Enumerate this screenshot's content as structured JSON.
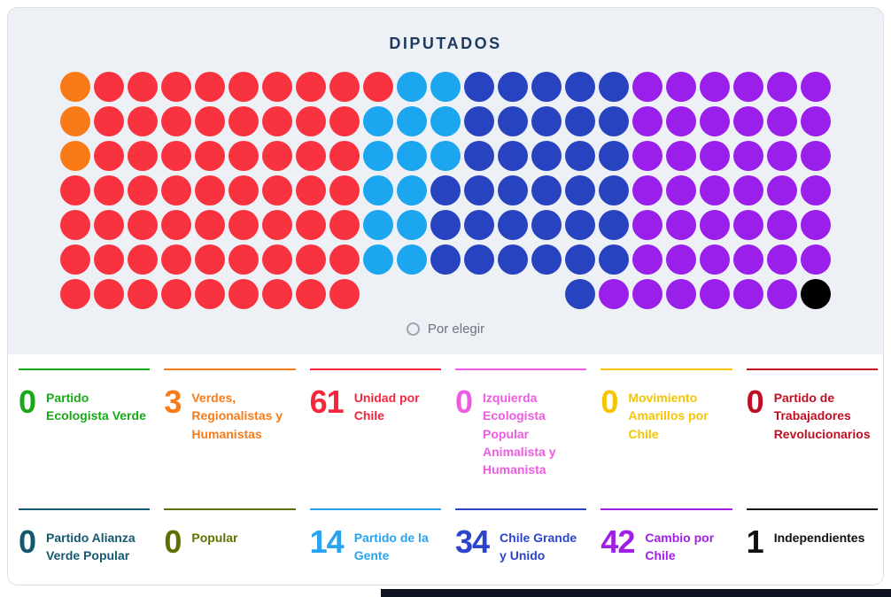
{
  "title": "DIPUTADOS",
  "legend": {
    "label": "Por elegir"
  },
  "seats": {
    "palette": {
      "O": "#f97b17",
      "R": "#f8333f",
      "LB": "#1ba6ef",
      "DB": "#2843bf",
      "P": "#9b1fea",
      "K": "#000000"
    },
    "rows": [
      [
        "O",
        "R",
        "R",
        "R",
        "R",
        "R",
        "R",
        "R",
        "R",
        "R",
        "LB",
        "LB",
        "DB",
        "DB",
        "DB",
        "DB",
        "DB",
        "P",
        "P",
        "P",
        "P",
        "P",
        "P"
      ],
      [
        "O",
        "R",
        "R",
        "R",
        "R",
        "R",
        "R",
        "R",
        "R",
        "LB",
        "LB",
        "LB",
        "DB",
        "DB",
        "DB",
        "DB",
        "DB",
        "P",
        "P",
        "P",
        "P",
        "P",
        "P"
      ],
      [
        "O",
        "R",
        "R",
        "R",
        "R",
        "R",
        "R",
        "R",
        "R",
        "LB",
        "LB",
        "LB",
        "DB",
        "DB",
        "DB",
        "DB",
        "DB",
        "P",
        "P",
        "P",
        "P",
        "P",
        "P"
      ],
      [
        "R",
        "R",
        "R",
        "R",
        "R",
        "R",
        "R",
        "R",
        "R",
        "LB",
        "LB",
        "DB",
        "DB",
        "DB",
        "DB",
        "DB",
        "DB",
        "P",
        "P",
        "P",
        "P",
        "P",
        "P"
      ],
      [
        "R",
        "R",
        "R",
        "R",
        "R",
        "R",
        "R",
        "R",
        "R",
        "LB",
        "LB",
        "DB",
        "DB",
        "DB",
        "DB",
        "DB",
        "DB",
        "P",
        "P",
        "P",
        "P",
        "P",
        "P"
      ],
      [
        "R",
        "R",
        "R",
        "R",
        "R",
        "R",
        "R",
        "R",
        "R",
        "LB",
        "LB",
        "DB",
        "DB",
        "DB",
        "DB",
        "DB",
        "DB",
        "P",
        "P",
        "P",
        "P",
        "P",
        "P"
      ],
      [
        "R",
        "R",
        "R",
        "R",
        "R",
        "R",
        "R",
        "R",
        "R",
        "E",
        "E",
        "E",
        "E",
        "E",
        "E",
        "DB",
        "P",
        "P",
        "P",
        "P",
        "P",
        "P",
        "K"
      ]
    ]
  },
  "parties": [
    {
      "count": "0",
      "name": "Partido Ecologista Verde",
      "color": "#18a818"
    },
    {
      "count": "3",
      "name": "Verdes, Regionalistas y Humanistas",
      "color": "#f97b17"
    },
    {
      "count": "61",
      "name": "Unidad por Chile",
      "color": "#f8253c"
    },
    {
      "count": "0",
      "name": "Izquierda Ecologista Popular Animalista y Humanista",
      "color": "#ee5be1"
    },
    {
      "count": "0",
      "name": "Movimiento Amarillos por Chile",
      "color": "#f6c401"
    },
    {
      "count": "0",
      "name": "Partido de Trabajadores Revolucionarios",
      "color": "#c00f22"
    },
    {
      "count": "0",
      "name": "Partido Alianza Verde Popular",
      "color": "#14586f"
    },
    {
      "count": "0",
      "name": "Popular",
      "color": "#5f7000"
    },
    {
      "count": "14",
      "name": "Partido de la Gente",
      "color": "#29a3ef"
    },
    {
      "count": "34",
      "name": "Chile Grande y Unido",
      "color": "#2b44cb"
    },
    {
      "count": "42",
      "name": "Cambio por Chile",
      "color": "#a01fe5"
    },
    {
      "count": "1",
      "name": "Independientes",
      "color": "#111111"
    }
  ],
  "chart_data": {
    "type": "parliament-seats",
    "title": "DIPUTADOS",
    "total_seats": 155,
    "unfilled_label": "Por elegir",
    "series": [
      {
        "name": "Partido Ecologista Verde",
        "seats": 0,
        "color": "#18a818"
      },
      {
        "name": "Verdes, Regionalistas y Humanistas",
        "seats": 3,
        "color": "#f97b17"
      },
      {
        "name": "Unidad por Chile",
        "seats": 61,
        "color": "#f8333f"
      },
      {
        "name": "Izquierda Ecologista Popular Animalista y Humanista",
        "seats": 0,
        "color": "#ee5be1"
      },
      {
        "name": "Movimiento Amarillos por Chile",
        "seats": 0,
        "color": "#f6c401"
      },
      {
        "name": "Partido de Trabajadores Revolucionarios",
        "seats": 0,
        "color": "#c00f22"
      },
      {
        "name": "Partido Alianza Verde Popular",
        "seats": 0,
        "color": "#14586f"
      },
      {
        "name": "Popular",
        "seats": 0,
        "color": "#5f7000"
      },
      {
        "name": "Partido de la Gente",
        "seats": 14,
        "color": "#1ba6ef"
      },
      {
        "name": "Chile Grande y Unido",
        "seats": 34,
        "color": "#2843bf"
      },
      {
        "name": "Cambio por Chile",
        "seats": 42,
        "color": "#9b1fea"
      },
      {
        "name": "Independientes",
        "seats": 1,
        "color": "#000000"
      }
    ],
    "layout": {
      "rows": 7,
      "columns": 23,
      "fill_order": "column-blocks-left-to-right"
    }
  }
}
